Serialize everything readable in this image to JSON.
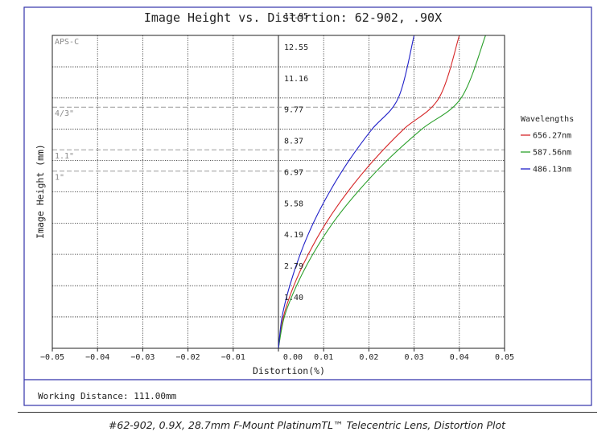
{
  "chart_data": {
    "type": "line",
    "title": "Image Height vs. Distortion: 62-902, .90X",
    "xlabel": "Distortion(%)",
    "ylabel": "Image Height (mm)",
    "xlim": [
      -0.05,
      0.05
    ],
    "ylim": [
      0,
      13.95
    ],
    "x_ticks": [
      {
        "value": -0.05,
        "label": "−0.05"
      },
      {
        "value": -0.04,
        "label": "−0.04"
      },
      {
        "value": -0.03,
        "label": "−0.03"
      },
      {
        "value": -0.02,
        "label": "−0.02"
      },
      {
        "value": -0.01,
        "label": "−0.01"
      },
      {
        "value": 0.0,
        "label": "0.00"
      },
      {
        "value": 0.01,
        "label": "0.01"
      },
      {
        "value": 0.02,
        "label": "0.02"
      },
      {
        "value": 0.03,
        "label": "0.03"
      },
      {
        "value": 0.04,
        "label": "0.04"
      },
      {
        "value": 0.05,
        "label": "0.05"
      }
    ],
    "y_ticks": [
      {
        "value": 1.4,
        "label": "1.40"
      },
      {
        "value": 2.79,
        "label": "2.79"
      },
      {
        "value": 4.19,
        "label": "4.19"
      },
      {
        "value": 5.58,
        "label": "5.58"
      },
      {
        "value": 6.97,
        "label": "6.97"
      },
      {
        "value": 8.37,
        "label": "8.37"
      },
      {
        "value": 9.77,
        "label": "9.77"
      },
      {
        "value": 11.16,
        "label": "11.16"
      },
      {
        "value": 12.55,
        "label": "12.55"
      },
      {
        "value": 13.95,
        "label": "13.95"
      }
    ],
    "sensor_lines": [
      {
        "label": "APS-C",
        "value": 13.95
      },
      {
        "label": "4/3\"",
        "value": 10.75
      },
      {
        "label": "1.1\"",
        "value": 8.85
      },
      {
        "label": "1\"",
        "value": 7.9
      }
    ],
    "grid": true,
    "legend_title": "Wavelengths",
    "legend_position": "right",
    "series": [
      {
        "name": "656.27nm",
        "color": "#d62728",
        "x": [
          0,
          0.0011,
          0.0034,
          0.0066,
          0.0105,
          0.0153,
          0.021,
          0.0277,
          0.0355,
          0.04
        ],
        "y": [
          0,
          1.4,
          2.79,
          4.19,
          5.58,
          6.97,
          8.37,
          9.77,
          11.16,
          13.95
        ]
      },
      {
        "name": "587.56nm",
        "color": "#2ca02c",
        "x": [
          0,
          0.0013,
          0.004,
          0.0076,
          0.012,
          0.0175,
          0.024,
          0.0317,
          0.0404,
          0.0458
        ],
        "y": [
          0,
          1.4,
          2.79,
          4.19,
          5.58,
          6.97,
          8.37,
          9.77,
          11.16,
          13.95
        ]
      },
      {
        "name": "486.13nm",
        "color": "#1f1fc8",
        "x": [
          0,
          0.0008,
          0.0025,
          0.0048,
          0.0077,
          0.0113,
          0.0156,
          0.0207,
          0.0265,
          0.03
        ],
        "y": [
          0,
          1.4,
          2.79,
          4.19,
          5.58,
          6.97,
          8.37,
          9.77,
          11.16,
          13.95
        ]
      }
    ]
  },
  "footer": {
    "working_distance": "Working Distance: 111.00mm"
  },
  "caption": "#62-902, 0.9X, 28.7mm F-Mount PlatinumTL™ Telecentric Lens, Distortion Plot"
}
